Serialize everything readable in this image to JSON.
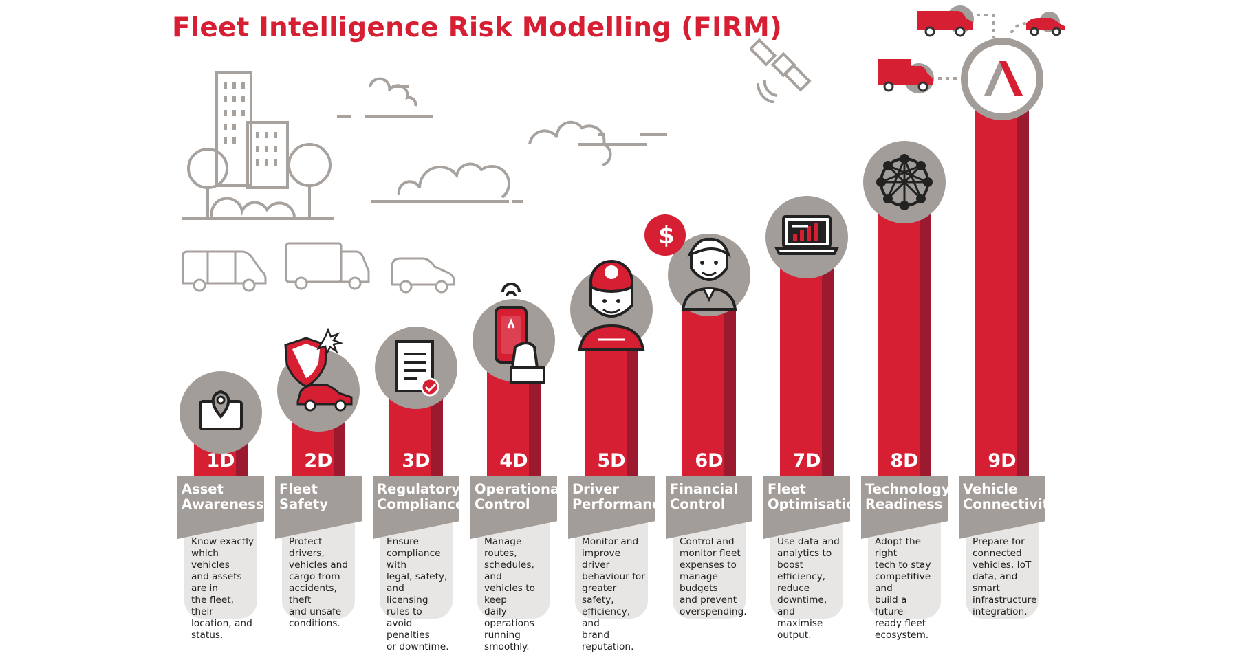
{
  "title": "Fleet Intelligence Risk Modelling (FIRM)",
  "colors": {
    "accent": "#d71f34",
    "accent_dark": "#9c1a30",
    "grey": "#a39d9a",
    "light_grey": "#e8e6e4",
    "outline": "#a8a29f"
  },
  "stages": [
    {
      "id": "1D",
      "name": [
        "Asset",
        "Awareness"
      ],
      "icon": "map-pin-tablet-icon",
      "desc": [
        "Know exactly",
        "which vehicles",
        "and assets are in",
        "the fleet, their",
        "location, and",
        "status."
      ]
    },
    {
      "id": "2D",
      "name": [
        "Fleet",
        "Safety"
      ],
      "icon": "shield-car-icon",
      "desc": [
        "Protect drivers,",
        "vehicles and",
        "cargo from",
        "accidents, theft",
        "and unsafe",
        "conditions."
      ]
    },
    {
      "id": "3D",
      "name": [
        "Regulatory",
        "Compliance"
      ],
      "icon": "document-check-icon",
      "desc": [
        "Ensure",
        "compliance with",
        "legal, safety, and",
        "licensing rules to",
        "avoid penalties",
        "or downtime."
      ]
    },
    {
      "id": "4D",
      "name": [
        "Operational",
        "Control"
      ],
      "icon": "smartphone-hand-icon",
      "desc": [
        "Manage routes,",
        "schedules, and",
        "vehicles to keep",
        "daily operations",
        "running",
        "smoothly."
      ]
    },
    {
      "id": "5D",
      "name": [
        "Driver",
        "Performance"
      ],
      "icon": "driver-steering-wheel-icon",
      "desc": [
        "Monitor and",
        "improve driver",
        "behaviour for",
        "greater safety,",
        "efficiency, and",
        "brand reputation."
      ]
    },
    {
      "id": "6D",
      "name": [
        "Financial",
        "Control"
      ],
      "icon": "manager-dollar-icon",
      "desc": [
        "Control and",
        "monitor fleet",
        "expenses to",
        "manage budgets",
        "and prevent",
        "overspending."
      ]
    },
    {
      "id": "7D",
      "name": [
        "Fleet",
        "Optimisation"
      ],
      "icon": "laptop-chart-icon",
      "desc": [
        "Use data and",
        "analytics to",
        "boost efficiency,",
        "reduce downtime,",
        "and maximise",
        "output."
      ]
    },
    {
      "id": "8D",
      "name": [
        "Technology",
        "Readiness"
      ],
      "icon": "network-mesh-icon",
      "desc": [
        "Adopt the right",
        "tech to stay",
        "competitive and",
        "build a future-",
        "ready fleet",
        "ecosystem."
      ]
    },
    {
      "id": "9D",
      "name": [
        "Vehicle",
        "Connectivity"
      ],
      "icon": "logo-a-icon",
      "desc": [
        "Prepare for",
        "connected",
        "vehicles, IoT",
        "data, and smart",
        "infrastructure",
        "integration."
      ]
    }
  ]
}
